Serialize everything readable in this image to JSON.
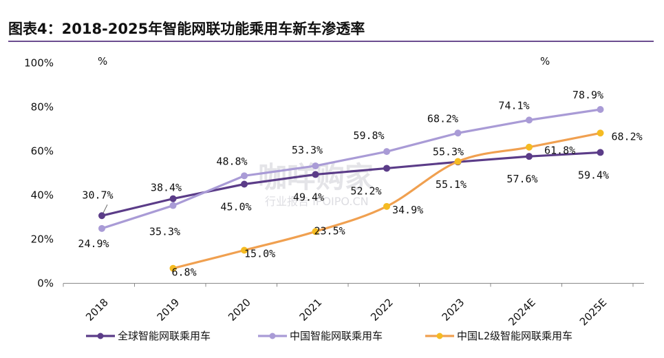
{
  "chart_data": {
    "type": "line",
    "title": "图表4：2018-2025年智能网联功能乘用车新车渗透率",
    "left_unit": "%",
    "right_unit": "%",
    "categories": [
      "2018",
      "2019",
      "2020",
      "2021",
      "2022",
      "2023",
      "2024E",
      "2025E"
    ],
    "ylim": [
      0,
      100
    ],
    "yticks": [
      "0%",
      "20%",
      "40%",
      "60%",
      "80%",
      "100%"
    ],
    "legend_position": "bottom",
    "series": [
      {
        "name": "全球智能网联乘用车",
        "color": "#5b3c88",
        "values": [
          30.7,
          38.4,
          45.0,
          49.4,
          52.2,
          55.1,
          57.6,
          59.4
        ],
        "labels": [
          "30.7%",
          "38.4%",
          "45.0%",
          "49.4%",
          "52.2%",
          "55.1%",
          "57.6%",
          "59.4%"
        ]
      },
      {
        "name": "中国智能网联乘用车",
        "color": "#a99bd6",
        "values": [
          24.9,
          35.3,
          48.8,
          53.3,
          59.8,
          68.2,
          74.1,
          78.9
        ],
        "labels": [
          "24.9%",
          "35.3%",
          "48.8%",
          "53.3%",
          "59.8%",
          "68.2%",
          "74.1%",
          "78.9%"
        ]
      },
      {
        "name": "中国L2级智能网联乘用车",
        "color": "#f0a050",
        "marker_color": "#f5bb22",
        "values": [
          null,
          6.8,
          15.0,
          23.5,
          34.9,
          55.3,
          61.8,
          68.2
        ],
        "labels": [
          null,
          "6.8%",
          "15.0%",
          "23.5%",
          "34.9%",
          "55.3%",
          "61.8%",
          "68.2%"
        ]
      }
    ]
  },
  "watermark": {
    "text": "咖咩购家",
    "sub": "行业报告 IPOIPO.CN"
  }
}
